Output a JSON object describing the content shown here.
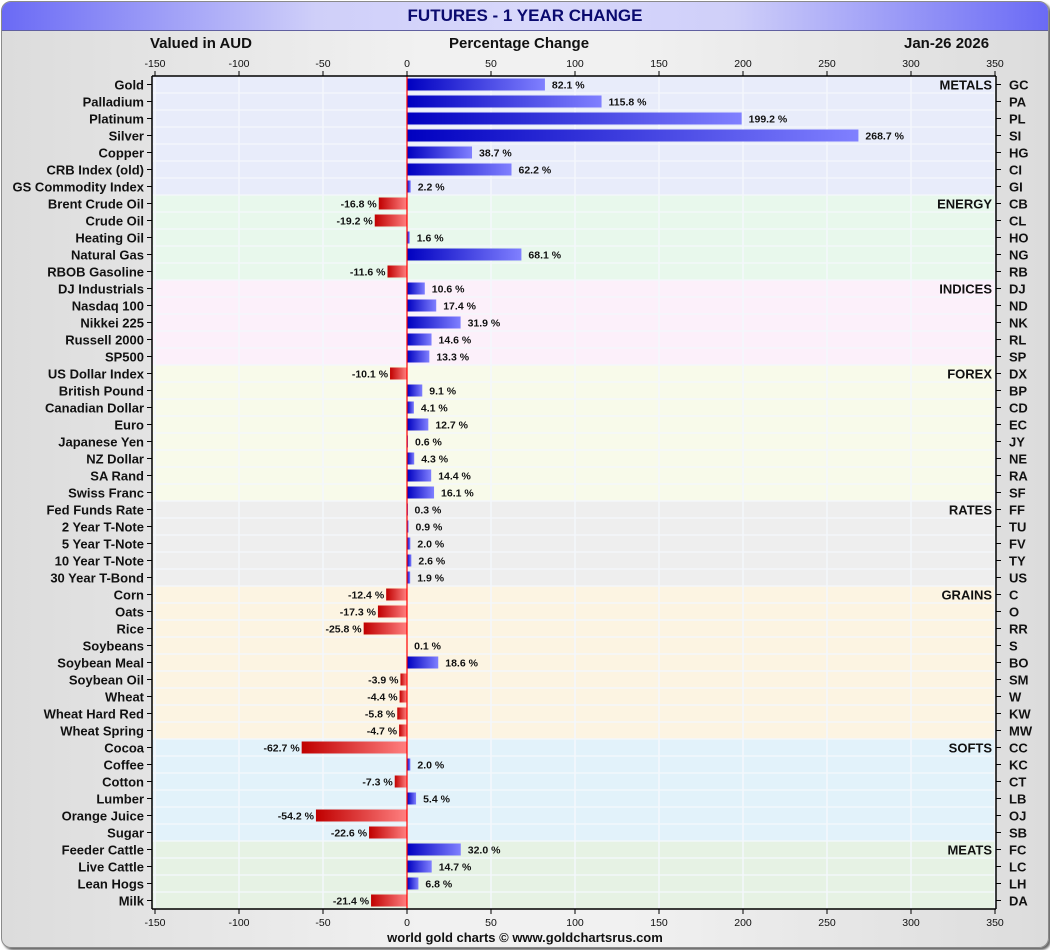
{
  "window": {
    "title": "FUTURES - 1 YEAR CHANGE"
  },
  "header": {
    "left": "Valued in AUD",
    "center": "Percentage Change",
    "right": "Jan-26  2026"
  },
  "footer": {
    "credit": "world gold charts © www.goldchartsrus.com"
  },
  "colors": {
    "positive_dark": "#0000c0",
    "positive_light": "#8080ff",
    "negative_dark": "#c00000",
    "negative_light": "#ff8080",
    "zero_line": "#ff0000",
    "grid": "#f2f6fb"
  },
  "chart_data": {
    "type": "bar",
    "orientation": "horizontal",
    "title": "FUTURES - 1 YEAR CHANGE",
    "xlabel": "Percentage Change",
    "ylabel": "",
    "xlim": [
      -150,
      350
    ],
    "xticks": [
      -150,
      -100,
      -50,
      0,
      50,
      100,
      150,
      200,
      250,
      300,
      350
    ],
    "grid": true,
    "value_suffix": " %",
    "groups": [
      {
        "name": "METALS",
        "bg": "#e8ecfa",
        "items": [
          {
            "label": "Gold",
            "code": "GC",
            "value": 82.1
          },
          {
            "label": "Palladium",
            "code": "PA",
            "value": 115.8
          },
          {
            "label": "Platinum",
            "code": "PL",
            "value": 199.2
          },
          {
            "label": "Silver",
            "code": "SI",
            "value": 268.7
          },
          {
            "label": "Copper",
            "code": "HG",
            "value": 38.7
          },
          {
            "label": "CRB Index (old)",
            "code": "CI",
            "value": 62.2
          },
          {
            "label": "GS Commodity Index",
            "code": "GI",
            "value": 2.2
          }
        ]
      },
      {
        "name": "ENERGY",
        "bg": "#e8f8ec",
        "items": [
          {
            "label": "Brent Crude Oil",
            "code": "CB",
            "value": -16.8
          },
          {
            "label": "Crude Oil",
            "code": "CL",
            "value": -19.2
          },
          {
            "label": "Heating Oil",
            "code": "HO",
            "value": 1.6
          },
          {
            "label": "Natural Gas",
            "code": "NG",
            "value": 68.1
          },
          {
            "label": "RBOB Gasoline",
            "code": "RB",
            "value": -11.6
          }
        ]
      },
      {
        "name": "INDICES",
        "bg": "#fcf0fa",
        "items": [
          {
            "label": "DJ Industrials",
            "code": "DJ",
            "value": 10.6
          },
          {
            "label": "Nasdaq 100",
            "code": "ND",
            "value": 17.4
          },
          {
            "label": "Nikkei 225",
            "code": "NK",
            "value": 31.9
          },
          {
            "label": "Russell 2000",
            "code": "RL",
            "value": 14.6
          },
          {
            "label": "SP500",
            "code": "SP",
            "value": 13.3
          }
        ]
      },
      {
        "name": "FOREX",
        "bg": "#f8faea",
        "items": [
          {
            "label": "US Dollar Index",
            "code": "DX",
            "value": -10.1
          },
          {
            "label": "British Pound",
            "code": "BP",
            "value": 9.1
          },
          {
            "label": "Canadian Dollar",
            "code": "CD",
            "value": 4.1
          },
          {
            "label": "Euro",
            "code": "EC",
            "value": 12.7
          },
          {
            "label": "Japanese Yen",
            "code": "JY",
            "value": 0.6
          },
          {
            "label": "NZ Dollar",
            "code": "NE",
            "value": 4.3
          },
          {
            "label": "SA Rand",
            "code": "RA",
            "value": 14.4
          },
          {
            "label": "Swiss Franc",
            "code": "SF",
            "value": 16.1
          }
        ]
      },
      {
        "name": "RATES",
        "bg": "#eeeeee",
        "items": [
          {
            "label": "Fed Funds Rate",
            "code": "FF",
            "value": 0.3
          },
          {
            "label": "2 Year T-Note",
            "code": "TU",
            "value": 0.9
          },
          {
            "label": "5 Year T-Note",
            "code": "FV",
            "value": 2.0
          },
          {
            "label": "10 Year T-Note",
            "code": "TY",
            "value": 2.6
          },
          {
            "label": "30 Year T-Bond",
            "code": "US",
            "value": 1.9
          }
        ]
      },
      {
        "name": "GRAINS",
        "bg": "#fcf4e2",
        "items": [
          {
            "label": "Corn",
            "code": "C",
            "value": -12.4
          },
          {
            "label": "Oats",
            "code": "O",
            "value": -17.3
          },
          {
            "label": "Rice",
            "code": "RR",
            "value": -25.8
          },
          {
            "label": "Soybeans",
            "code": "S",
            "value": 0.1
          },
          {
            "label": "Soybean Meal",
            "code": "BO",
            "value": 18.6
          },
          {
            "label": "Soybean Oil",
            "code": "SM",
            "value": -3.9
          },
          {
            "label": "Wheat",
            "code": "W",
            "value": -4.4
          },
          {
            "label": "Wheat Hard Red",
            "code": "KW",
            "value": -5.8
          },
          {
            "label": "Wheat Spring",
            "code": "MW",
            "value": -4.7
          }
        ]
      },
      {
        "name": "SOFTS",
        "bg": "#e2f2fa",
        "items": [
          {
            "label": "Cocoa",
            "code": "CC",
            "value": -62.7
          },
          {
            "label": "Coffee",
            "code": "KC",
            "value": 2.0
          },
          {
            "label": "Cotton",
            "code": "CT",
            "value": -7.3
          },
          {
            "label": "Lumber",
            "code": "LB",
            "value": 5.4
          },
          {
            "label": "Orange Juice",
            "code": "OJ",
            "value": -54.2
          },
          {
            "label": "Sugar",
            "code": "SB",
            "value": -22.6
          }
        ]
      },
      {
        "name": "MEATS",
        "bg": "#e6f2e4",
        "items": [
          {
            "label": "Feeder Cattle",
            "code": "FC",
            "value": 32.0
          },
          {
            "label": "Live Cattle",
            "code": "LC",
            "value": 14.7
          },
          {
            "label": "Lean Hogs",
            "code": "LH",
            "value": 6.8
          },
          {
            "label": "Milk",
            "code": "DA",
            "value": -21.4
          }
        ]
      }
    ]
  }
}
